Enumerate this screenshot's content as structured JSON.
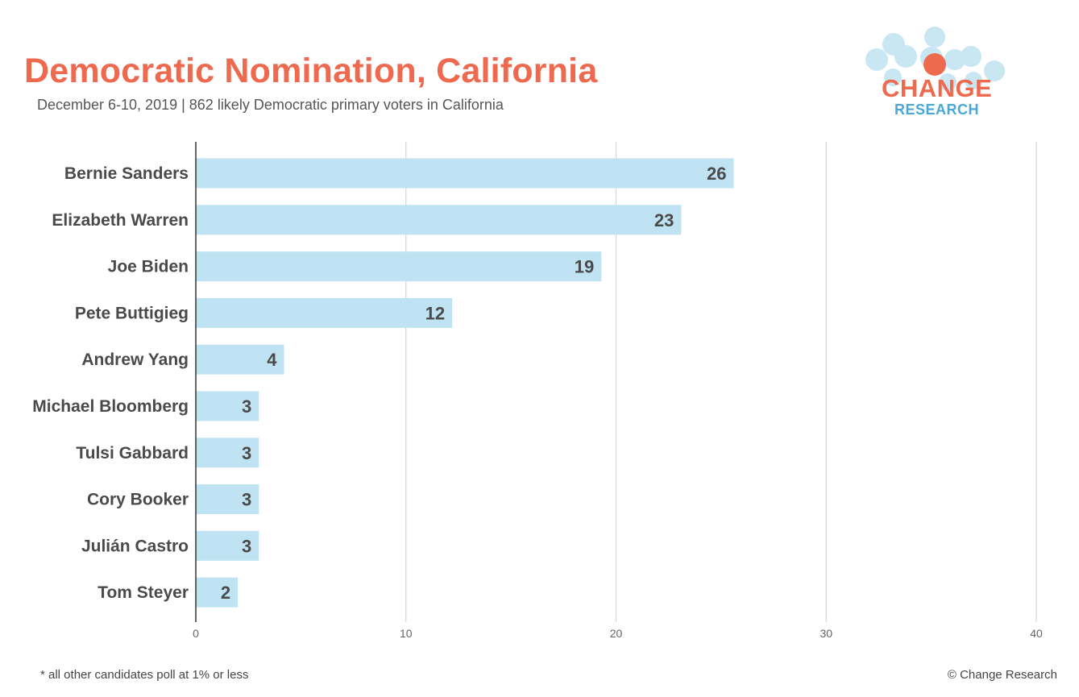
{
  "header": {
    "title": "Democratic Nomination, California",
    "subtitle": "December 6-10, 2019 | 862 likely Democratic primary voters in California"
  },
  "logo": {
    "word_top": "CHANGE",
    "word_bottom": "RESEARCH",
    "colors": {
      "accent": "#ee6a4f",
      "blue": "#4aa8d8",
      "bubble": "#bfe3f2"
    }
  },
  "chart_data": {
    "type": "bar",
    "orientation": "horizontal",
    "categories": [
      "Bernie Sanders",
      "Elizabeth Warren",
      "Joe Biden",
      "Pete Buttigieg",
      "Andrew Yang",
      "Michael Bloomberg",
      "Tulsi Gabbard",
      "Cory Booker",
      "Julián Castro",
      "Tom Steyer"
    ],
    "values": [
      26,
      23,
      19,
      12,
      4,
      3,
      3,
      3,
      3,
      2
    ],
    "bar_lengths": [
      25.6,
      23.1,
      19.3,
      12.2,
      4.2,
      3.0,
      3.0,
      3.0,
      3.0,
      2.0
    ],
    "xlim": [
      0,
      40
    ],
    "xticks": [
      0,
      10,
      20,
      30,
      40
    ],
    "title": "Democratic Nomination, California",
    "xlabel": "",
    "ylabel": "",
    "grid": true,
    "legend": "none",
    "bar_color": "#bfe3f2",
    "label_color": "#4a4a4a"
  },
  "footer": {
    "note": "* all other candidates poll at 1% or less",
    "copyright": "© Change Research"
  }
}
